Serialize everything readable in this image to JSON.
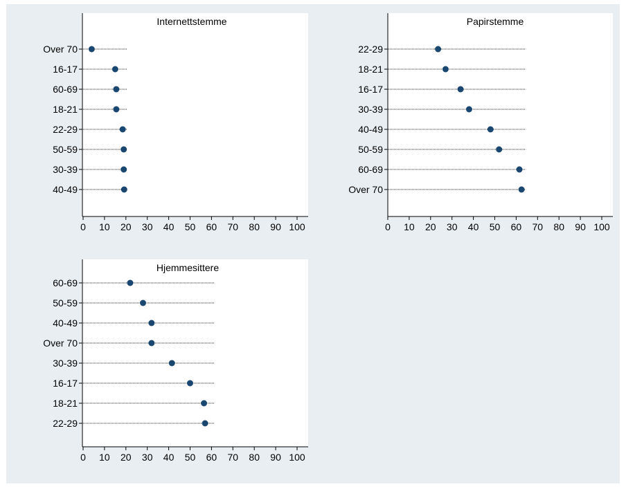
{
  "colors": {
    "background": "#e9eef2",
    "plot_area": "#ffffff",
    "marker": "#1a476f",
    "axis": "#000000",
    "dotline": "#222222"
  },
  "chart_data": [
    {
      "type": "scatter",
      "subtype": "dot-plot",
      "title": "Internettstemme",
      "xlim": [
        0,
        100
      ],
      "xticks": [
        0,
        10,
        20,
        30,
        40,
        50,
        60,
        70,
        80,
        90,
        100
      ],
      "categories": [
        "Over 70",
        "16-17",
        "60-69",
        "18-21",
        "22-29",
        "50-59",
        "30-39",
        "40-49"
      ],
      "values": [
        4,
        15,
        15.5,
        15.5,
        18.5,
        19,
        19,
        19.2
      ],
      "dot_line_max": 20.5,
      "grid": false
    },
    {
      "type": "scatter",
      "subtype": "dot-plot",
      "title": "Papirstemme",
      "xlim": [
        0,
        100
      ],
      "xticks": [
        0,
        10,
        20,
        30,
        40,
        50,
        60,
        70,
        80,
        90,
        100
      ],
      "categories": [
        "22-29",
        "18-21",
        "16-17",
        "30-39",
        "40-49",
        "50-59",
        "60-69",
        "Over 70"
      ],
      "values": [
        23.5,
        27,
        34,
        38,
        48,
        52,
        61.5,
        62.5
      ],
      "dot_line_max": 64.5,
      "grid": false
    },
    {
      "type": "scatter",
      "subtype": "dot-plot",
      "title": "Hjemmesittere",
      "xlim": [
        0,
        100
      ],
      "xticks": [
        0,
        10,
        20,
        30,
        40,
        50,
        60,
        70,
        80,
        90,
        100
      ],
      "categories": [
        "60-69",
        "50-59",
        "40-49",
        "Over 70",
        "30-39",
        "16-17",
        "18-21",
        "22-29"
      ],
      "values": [
        22,
        28,
        32,
        32,
        41.5,
        50,
        56.5,
        57
      ],
      "dot_line_max": 61.5,
      "grid": false
    }
  ]
}
